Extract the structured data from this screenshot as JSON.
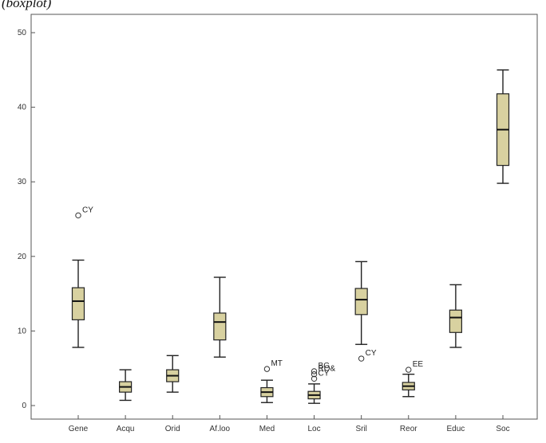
{
  "caption": "(boxplot)",
  "chart_data": {
    "type": "boxplot",
    "title": "",
    "xlabel": "",
    "ylabel": "",
    "ylim": [
      0,
      50
    ],
    "yticks": [
      0,
      10,
      20,
      30,
      40,
      50
    ],
    "categories": [
      "Gene",
      "Acqu",
      "Orid",
      "Af.loo",
      "Med",
      "Loc",
      "Sril",
      "Reor",
      "Educ",
      "Soc"
    ],
    "boxes": [
      {
        "category": "Gene",
        "whisker_low": 7.8,
        "q1": 11.5,
        "median": 14.0,
        "q3": 15.8,
        "whisker_high": 19.5
      },
      {
        "category": "Acqu",
        "whisker_low": 0.7,
        "q1": 1.8,
        "median": 2.5,
        "q3": 3.2,
        "whisker_high": 4.8
      },
      {
        "category": "Orid",
        "whisker_low": 1.8,
        "q1": 3.2,
        "median": 4.0,
        "q3": 4.8,
        "whisker_high": 6.7
      },
      {
        "category": "Af.loo",
        "whisker_low": 6.5,
        "q1": 8.8,
        "median": 11.2,
        "q3": 12.4,
        "whisker_high": 17.2
      },
      {
        "category": "Med",
        "whisker_low": 0.4,
        "q1": 1.2,
        "median": 1.8,
        "q3": 2.4,
        "whisker_high": 3.4
      },
      {
        "category": "Loc",
        "whisker_low": 0.3,
        "q1": 0.9,
        "median": 1.4,
        "q3": 1.9,
        "whisker_high": 2.9
      },
      {
        "category": "Sril",
        "whisker_low": 8.2,
        "q1": 12.2,
        "median": 14.2,
        "q3": 15.7,
        "whisker_high": 19.3
      },
      {
        "category": "Reor",
        "whisker_low": 1.2,
        "q1": 2.1,
        "median": 2.6,
        "q3": 3.1,
        "whisker_high": 4.2
      },
      {
        "category": "Educ",
        "whisker_low": 7.8,
        "q1": 9.8,
        "median": 11.8,
        "q3": 12.8,
        "whisker_high": 16.2
      },
      {
        "category": "Soc",
        "whisker_low": 29.8,
        "q1": 32.2,
        "median": 37.0,
        "q3": 41.8,
        "whisker_high": 45.0
      }
    ],
    "outliers": [
      {
        "category": "Gene",
        "value": 25.5,
        "label": "CY"
      },
      {
        "category": "Med",
        "value": 4.9,
        "label": "MT"
      },
      {
        "category": "Loc",
        "value": 4.6,
        "label": "BG"
      },
      {
        "category": "Loc",
        "value": 4.2,
        "label": "RO&"
      },
      {
        "category": "Loc",
        "value": 3.6,
        "label": "CY"
      },
      {
        "category": "Sril",
        "value": 6.3,
        "label": "CY"
      },
      {
        "category": "Reor",
        "value": 4.8,
        "label": "EE"
      }
    ],
    "box_fill": "#d8d1a0",
    "box_stroke": "#222222",
    "grid": false
  }
}
